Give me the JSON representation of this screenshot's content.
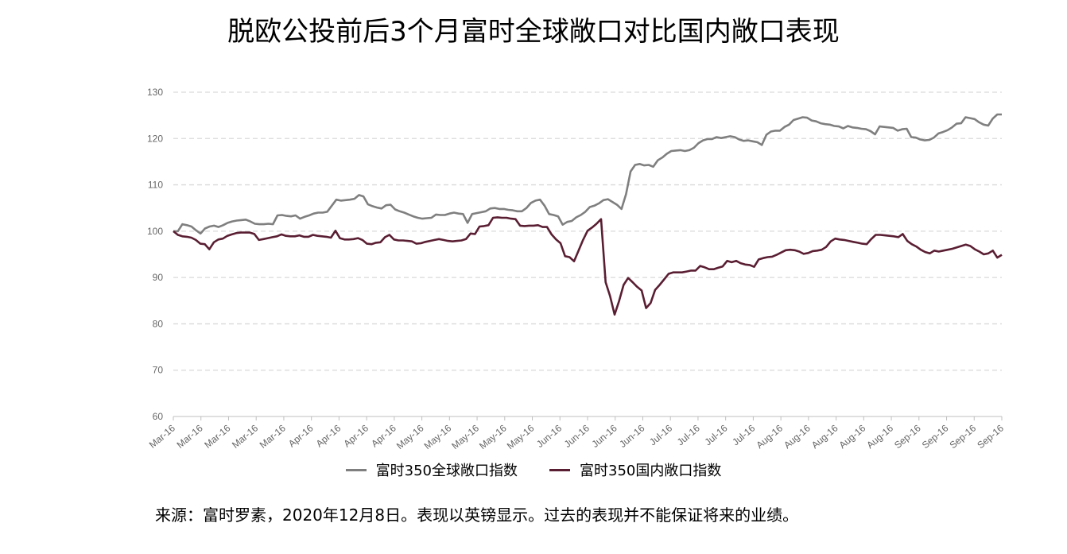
{
  "title": "脱欧公投前后3个月富时全球敞口对比国内敞口表现",
  "footnote": "来源：富时罗素，2020年12月8日。表现以英镑显示。过去的表现并不能保证将来的业绩。",
  "chart_data": {
    "type": "line",
    "ylim": [
      60,
      130
    ],
    "yticks": [
      60,
      70,
      80,
      90,
      100,
      110,
      120,
      130
    ],
    "grid": true,
    "legend_position": "bottom",
    "x_tick_labels": [
      "Mar-16",
      "Mar-16",
      "Mar-16",
      "Mar-16",
      "Mar-16",
      "Apr-16",
      "Apr-16",
      "Apr-16",
      "Apr-16",
      "May-16",
      "May-16",
      "May-16",
      "May-16",
      "May-16",
      "Jun-16",
      "Jun-16",
      "Jun-16",
      "Jun-16",
      "Jul-16",
      "Jul-16",
      "Jul-16",
      "Jul-16",
      "Aug-16",
      "Aug-16",
      "Aug-16",
      "Aug-16",
      "Aug-16",
      "Sep-16",
      "Sep-16",
      "Sep-16",
      "Sep-16"
    ],
    "series": [
      {
        "name": "富时350全球敞口指数",
        "color": "#7f7f7f",
        "values": [
          100,
          100,
          101.5,
          101.3,
          101,
          100.2,
          99.5,
          100.6,
          101,
          101.2,
          100.9,
          101.3,
          101.8,
          102.1,
          102.3,
          102.4,
          102.5,
          102.1,
          101.6,
          101.5,
          101.5,
          101.6,
          101.5,
          103.4,
          103.5,
          103.3,
          103.2,
          103.4,
          102.7,
          103.1,
          103.4,
          103.8,
          104,
          104,
          104.2,
          105.5,
          106.8,
          106.6,
          106.7,
          106.8,
          107,
          107.8,
          107.5,
          105.8,
          105.4,
          105.1,
          104.9,
          105.6,
          105.7,
          104.7,
          104.3,
          104,
          103.6,
          103.2,
          102.9,
          102.7,
          102.8,
          102.9,
          103.6,
          103.5,
          103.5,
          103.8,
          104,
          103.8,
          103.7,
          101.8,
          103.7,
          103.9,
          104.1,
          104.3,
          104.9,
          105,
          104.8,
          104.8,
          104.6,
          104.5,
          104.3,
          104.3,
          105,
          106.1,
          106.6,
          106.8,
          105.5,
          103.7,
          103.5,
          103.2,
          101.4,
          102,
          102.2,
          103,
          103.5,
          104.2,
          105.2,
          105.5,
          106,
          106.7,
          106.9,
          106.3,
          105.7,
          104.8,
          108,
          112.9,
          114.3,
          114.5,
          114.2,
          114.3,
          113.9,
          115.3,
          115.9,
          116.7,
          117.3,
          117.4,
          117.5,
          117.3,
          117.5,
          118,
          119,
          119.6,
          119.9,
          119.9,
          120.3,
          120.1,
          120.3,
          120.5,
          120.3,
          119.8,
          119.5,
          119.6,
          119.4,
          119.2,
          118.6,
          120.8,
          121.5,
          121.7,
          121.7,
          122.5,
          123,
          124,
          124.3,
          124.6,
          124.5,
          123.9,
          123.7,
          123.3,
          123.1,
          123,
          122.7,
          122.6,
          122.2,
          122.7,
          122.4,
          122.3,
          122.1,
          122,
          121.6,
          120.9,
          122.6,
          122.5,
          122.4,
          122.3,
          121.7,
          122,
          122.1,
          120.3,
          120.2,
          119.8,
          119.6,
          119.7,
          120.2,
          121.1,
          121.4,
          121.8,
          122.4,
          123.2,
          123.3,
          124.6,
          124.4,
          124.2,
          123.5,
          123,
          122.8,
          124.3,
          125.2,
          125.2
        ]
      },
      {
        "name": "富时350国内敞口指数",
        "color": "#5a1e33",
        "values": [
          100,
          99.2,
          98.9,
          98.8,
          98.6,
          98.1,
          97.3,
          97.2,
          96.1,
          97.6,
          98.2,
          98.4,
          99,
          99.3,
          99.6,
          99.7,
          99.7,
          99.7,
          99.4,
          98.1,
          98.3,
          98.5,
          98.7,
          98.9,
          99.3,
          99,
          98.9,
          98.9,
          99.1,
          98.8,
          98.8,
          99.2,
          99,
          98.9,
          98.8,
          98.6,
          100.1,
          98.5,
          98.2,
          98.2,
          98.3,
          98.5,
          98.1,
          97.3,
          97.2,
          97.5,
          97.6,
          98.7,
          99.2,
          98.2,
          98,
          98,
          97.9,
          97.8,
          97.3,
          97.4,
          97.7,
          97.9,
          98.1,
          98.3,
          98.1,
          97.9,
          97.8,
          97.9,
          98,
          98.3,
          99.5,
          99.4,
          101,
          101.1,
          101.3,
          102.9,
          103,
          102.9,
          102.9,
          102.7,
          102.6,
          101.2,
          101.1,
          101.2,
          101.2,
          101.3,
          100.9,
          100.9,
          99.3,
          98.2,
          97.4,
          94.6,
          94.4,
          93.5,
          95.8,
          98.1,
          100.1,
          100.8,
          101.6,
          102.6,
          89,
          86,
          82,
          84.9,
          88.4,
          89.9,
          89,
          88,
          87.2,
          83.4,
          84.5,
          87.3,
          88.4,
          89.6,
          90.8,
          91.1,
          91.1,
          91.1,
          91.3,
          91.5,
          91.5,
          92.5,
          92.2,
          91.8,
          91.8,
          92.1,
          92.4,
          93.6,
          93.3,
          93.6,
          93.1,
          92.8,
          92.7,
          92.3,
          93.9,
          94.2,
          94.4,
          94.5,
          94.9,
          95.4,
          95.9,
          96,
          95.9,
          95.6,
          95.1,
          95.3,
          95.7,
          95.8,
          96,
          96.6,
          97.8,
          98.4,
          98.2,
          98.1,
          97.9,
          97.7,
          97.5,
          97.3,
          97.2,
          98.3,
          99.2,
          99.2,
          99.1,
          99,
          98.9,
          98.7,
          99.4,
          97.9,
          97.2,
          96.7,
          96,
          95.5,
          95.2,
          95.8,
          95.6,
          95.8,
          96,
          96.2,
          96.5,
          96.8,
          97.1,
          96.8,
          96.1,
          95.6,
          95,
          95.2,
          95.8,
          94.3,
          94.9
        ]
      }
    ]
  }
}
